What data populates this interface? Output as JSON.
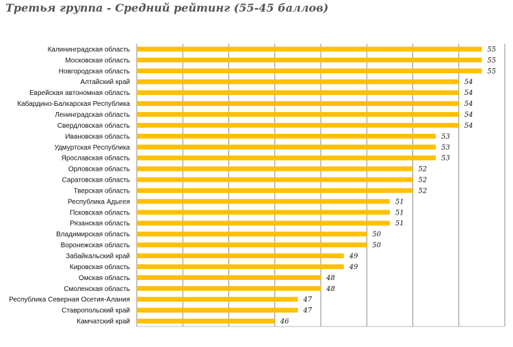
{
  "chart_data": {
    "type": "bar",
    "orientation": "horizontal",
    "title": "Третья группа - Средний рейтинг (55-45 баллов)",
    "categories": [
      "Калининградская область",
      "Московская область",
      "Новгородская область",
      "Алтайский край",
      "Еврейская автономная область",
      "Кабардино-Балкарская Республика",
      "Ленинградская область",
      "Свердловская область",
      "Ивановская область",
      "Удмуртская Республика",
      "Ярославская область",
      "Орловская область",
      "Саратовская область",
      "Тверская область",
      "Республика Адыгея",
      "Псковская область",
      "Рязанская область",
      "Владимирская область",
      "Воронежская область",
      "Забайкальский край",
      "Кировская область",
      "Омская область",
      "Смоленская область",
      "Республика Северная Осетия-Алания",
      "Ставропольский край",
      "Камчатский край"
    ],
    "values": [
      55,
      55,
      55,
      54,
      54,
      54,
      54,
      54,
      53,
      53,
      53,
      52,
      52,
      52,
      51,
      51,
      51,
      50,
      50,
      49,
      49,
      48,
      48,
      47,
      47,
      46
    ],
    "xlim": [
      40,
      56
    ],
    "grid": true,
    "bar_color": "#ffc000",
    "grid_color": "#888888"
  }
}
